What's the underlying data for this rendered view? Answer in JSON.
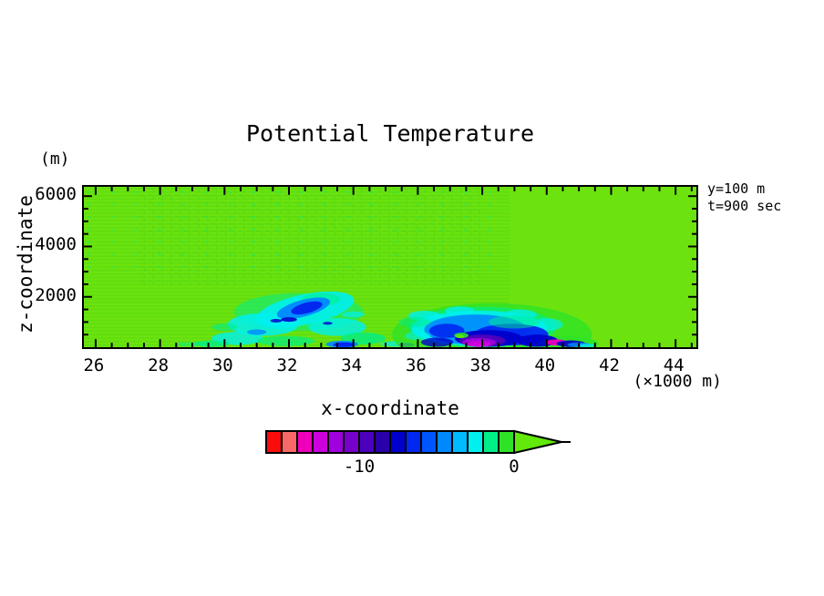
{
  "chart_data": {
    "type": "filled_contour_heatmap",
    "title": "Potential Temperature",
    "annotations": {
      "line1": "y=100 m",
      "line2": "t=900 sec"
    },
    "x_axis": {
      "label": "x-coordinate",
      "units_label": "(×1000 m)",
      "ticks": [
        26,
        28,
        30,
        32,
        34,
        36,
        38,
        40,
        42,
        44
      ],
      "minor_step": 0.5,
      "range": [
        25.63,
        44.65
      ]
    },
    "y_axis": {
      "label": "z-coordinate",
      "units_label": "(m)",
      "ticks": [
        2000,
        4000,
        6000
      ],
      "minor_step": 500,
      "range": [
        0,
        6320
      ]
    },
    "colorbar": {
      "orientation": "horizontal",
      "levels": [
        -16,
        -15,
        -14,
        -13,
        -12,
        -11,
        -10,
        -9,
        -8,
        -7,
        -6,
        -5,
        -4,
        -3,
        -2,
        -1,
        0
      ],
      "labels": [
        {
          "text": "-10",
          "value": -10,
          "boundary_index": 6
        },
        {
          "text": "0",
          "value": 0,
          "boundary_index": 16
        }
      ],
      "colors": [
        "#F80C0C",
        "#F86868",
        "#EE00BB",
        "#CC00DD",
        "#A000DD",
        "#7700CC",
        "#4C00BE",
        "#2A00AA",
        "#0000CC",
        "#0028F0",
        "#0055FF",
        "#0088FF",
        "#00BBFF",
        "#00F0F0",
        "#00EE88",
        "#2FE227"
      ],
      "arrow_color": "#62E80A",
      "arrow_meaning": "values above 0"
    },
    "colors": {
      "background_field": "#6CE30E",
      "texture_green": "#4FD512",
      "frame": "#000000",
      "page": "#FFFFFF"
    },
    "field_summary": "Mostly uniform near-zero (chartreuse) field with faint wave dithering aloft on the left half; turbulent cold pockets (cyan/blue) centered near x=32.5 km below z=2200 m, and a deeper cold pool (navy core with -13 to -12 K purple/magenta minimum) near x=37-40.5 km below z=1600 m, gust-front nose reaching x=41.3 km.",
    "blobs_format": [
      "x_km",
      "z_m",
      "rx_km",
      "rz_m",
      "palette_level_1to16_or_0_for_background",
      "opacity",
      "rotate_deg"
    ],
    "blobs": [
      [
        32.3,
        1400,
        2.0,
        750,
        15,
        0.55,
        0
      ],
      [
        32.5,
        1500,
        1.55,
        600,
        14,
        0.9,
        -12
      ],
      [
        31.2,
        900,
        1.1,
        450,
        14,
        0.85,
        0
      ],
      [
        30.4,
        350,
        0.8,
        260,
        14,
        0.8,
        0
      ],
      [
        33.5,
        800,
        0.9,
        350,
        14,
        0.8,
        0
      ],
      [
        34.3,
        350,
        0.7,
        240,
        15,
        0.8,
        0
      ],
      [
        29.6,
        140,
        0.55,
        130,
        15,
        0.8,
        0
      ],
      [
        31.9,
        250,
        0.9,
        200,
        15,
        0.7,
        0
      ],
      [
        33.0,
        1900,
        0.6,
        250,
        15,
        0.6,
        0
      ],
      [
        32.45,
        1550,
        0.85,
        330,
        12,
        0.95,
        -15
      ],
      [
        32.55,
        1560,
        0.5,
        210,
        10,
        1,
        -15
      ],
      [
        32.0,
        1100,
        0.25,
        90,
        9,
        0.9,
        0
      ],
      [
        31.6,
        1050,
        0.18,
        70,
        9,
        0.85,
        0
      ],
      [
        33.2,
        950,
        0.15,
        60,
        9,
        0.8,
        0
      ],
      [
        33.65,
        120,
        0.5,
        140,
        12,
        0.9,
        0
      ],
      [
        33.7,
        100,
        0.33,
        95,
        10,
        1,
        0
      ],
      [
        31.0,
        600,
        0.3,
        110,
        12,
        0.8,
        0
      ],
      [
        34.0,
        1300,
        0.35,
        120,
        14,
        0.7,
        0
      ],
      [
        30.0,
        800,
        0.4,
        150,
        15,
        0.6,
        0
      ],
      [
        28.9,
        120,
        0.4,
        90,
        15,
        0.5,
        0
      ],
      [
        35.3,
        130,
        0.45,
        110,
        14,
        0.7,
        0
      ],
      [
        35.65,
        90,
        0.25,
        80,
        10,
        0.9,
        0
      ],
      [
        38.3,
        500,
        3.1,
        1250,
        16,
        0.8,
        0
      ],
      [
        40.3,
        150,
        1.3,
        300,
        16,
        0.9,
        0
      ],
      [
        38.0,
        800,
        2.3,
        800,
        15,
        0.7,
        0
      ],
      [
        37.9,
        750,
        2.1,
        700,
        14,
        0.9,
        0
      ],
      [
        36.2,
        1250,
        0.5,
        200,
        14,
        0.8,
        0
      ],
      [
        37.3,
        1450,
        0.45,
        180,
        14,
        0.75,
        0
      ],
      [
        39.2,
        1300,
        0.5,
        200,
        14,
        0.7,
        0
      ],
      [
        40.0,
        900,
        0.5,
        250,
        14,
        0.7,
        0
      ],
      [
        37.8,
        700,
        1.6,
        600,
        12,
        0.9,
        0
      ],
      [
        38.9,
        500,
        1.15,
        430,
        10,
        0.95,
        0
      ],
      [
        36.9,
        650,
        0.55,
        280,
        10,
        0.9,
        0
      ],
      [
        38.2,
        350,
        1.05,
        330,
        9,
        1,
        0
      ],
      [
        39.7,
        260,
        0.65,
        240,
        9,
        0.95,
        0
      ],
      [
        36.6,
        200,
        0.5,
        180,
        9,
        0.8,
        0
      ],
      [
        38.0,
        260,
        0.72,
        240,
        7,
        1,
        0
      ],
      [
        37.9,
        190,
        0.52,
        170,
        5,
        1,
        0
      ],
      [
        37.9,
        130,
        0.36,
        120,
        4,
        1,
        0
      ],
      [
        37.35,
        470,
        0.22,
        110,
        16,
        0.9,
        0
      ],
      [
        37.3,
        430,
        0.13,
        70,
        0,
        0.9,
        0
      ],
      [
        40.3,
        190,
        0.33,
        120,
        3,
        0.95,
        0
      ],
      [
        40.75,
        140,
        0.45,
        130,
        9,
        0.9,
        0
      ],
      [
        41.0,
        100,
        0.35,
        90,
        12,
        0.85,
        0
      ],
      [
        41.25,
        70,
        0.3,
        60,
        14,
        0.8,
        0
      ],
      [
        36.0,
        450,
        0.4,
        170,
        14,
        0.6,
        0
      ],
      [
        39.0,
        1000,
        0.8,
        260,
        15,
        0.5,
        0
      ],
      [
        35.9,
        1000,
        0.5,
        200,
        15,
        0.5,
        0
      ]
    ]
  }
}
